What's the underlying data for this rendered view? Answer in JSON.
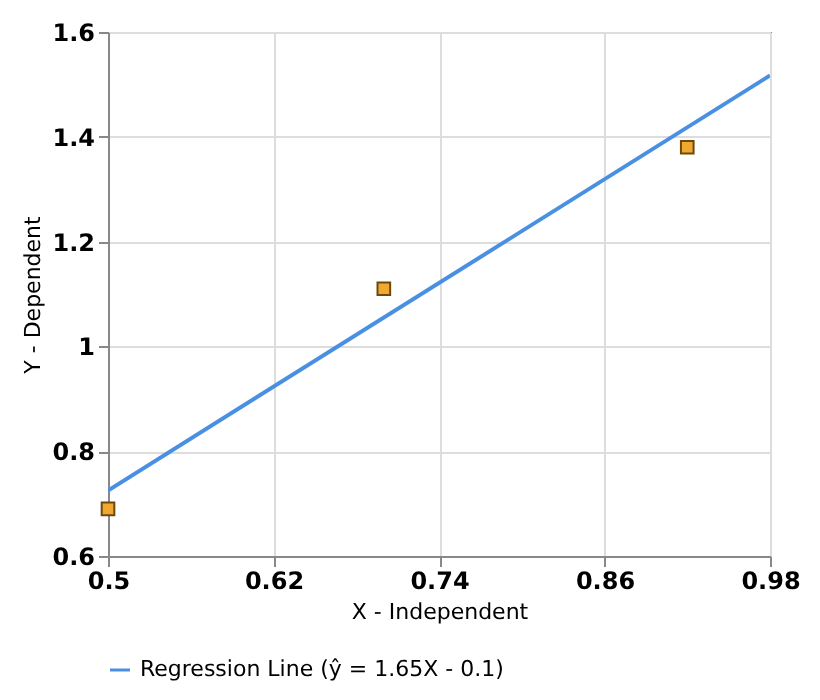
{
  "chart_data": {
    "type": "scatter",
    "xlabel": "X - Independent",
    "ylabel": "Y - Dependent",
    "xlim": [
      0.5,
      0.98
    ],
    "xticks": [
      0.5,
      0.62,
      0.74,
      0.86,
      0.98
    ],
    "ylim": [
      0.6,
      1.6
    ],
    "yticks": [
      0.6,
      0.8,
      1,
      1.2,
      1.4,
      1.6
    ],
    "grid": true,
    "legend": "bottom",
    "series": [
      {
        "color": "#f0a830",
        "marker": "square",
        "x": [
          0.5,
          0.7,
          0.92
        ],
        "values": [
          0.69,
          1.11,
          1.38
        ]
      },
      {
        "type": "line",
        "name": "Regression Line (ŷ = 1.65X - 0.1)",
        "color": "#4a90e2",
        "line_style": "solid",
        "x": [
          0.5,
          0.98
        ],
        "values": [
          0.725,
          1.517
        ]
      }
    ]
  }
}
